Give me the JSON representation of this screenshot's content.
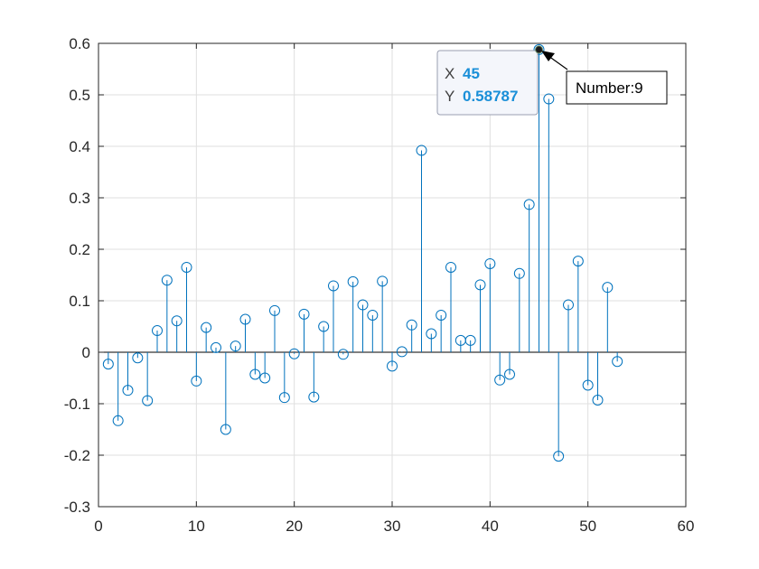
{
  "chart_data": {
    "type": "stem",
    "title": "",
    "xlabel": "",
    "ylabel": "",
    "xlim": [
      0,
      60
    ],
    "ylim": [
      -0.3,
      0.6
    ],
    "xticks": [
      0,
      10,
      20,
      30,
      40,
      50,
      60
    ],
    "yticks": [
      -0.3,
      -0.2,
      -0.1,
      0,
      0.1,
      0.2,
      0.3,
      0.4,
      0.5,
      0.6
    ],
    "xtick_labels": [
      "0",
      "10",
      "20",
      "30",
      "40",
      "50",
      "60"
    ],
    "ytick_labels": [
      "-0.3",
      "-0.2",
      "-0.1",
      "0",
      "0.1",
      "0.2",
      "0.3",
      "0.4",
      "0.5",
      "0.6"
    ],
    "grid": true,
    "baseline": 0,
    "series": [
      {
        "color": "#0072bd",
        "x": [
          1,
          2,
          3,
          4,
          5,
          6,
          7,
          8,
          9,
          10,
          11,
          12,
          13,
          14,
          15,
          16,
          17,
          18,
          19,
          20,
          21,
          22,
          23,
          24,
          25,
          26,
          27,
          28,
          29,
          30,
          31,
          32,
          33,
          34,
          35,
          36,
          37,
          38,
          39,
          40,
          41,
          42,
          43,
          44,
          45,
          46,
          47,
          48,
          49,
          50,
          51,
          52,
          53
        ],
        "y": [
          -0.023,
          -0.133,
          -0.074,
          -0.011,
          -0.094,
          0.042,
          0.14,
          0.061,
          0.165,
          -0.056,
          0.048,
          0.009,
          -0.15,
          0.012,
          0.064,
          -0.043,
          -0.05,
          0.081,
          -0.088,
          -0.003,
          0.074,
          -0.087,
          0.05,
          0.129,
          -0.004,
          0.137,
          0.092,
          0.072,
          0.138,
          -0.027,
          0.001,
          0.053,
          0.392,
          0.036,
          0.072,
          0.165,
          0.023,
          0.023,
          0.131,
          0.172,
          -0.054,
          -0.043,
          0.153,
          0.287,
          0.58787,
          0.492,
          -0.202,
          0.092,
          0.177,
          -0.064,
          -0.093,
          0.126,
          -0.018
        ]
      }
    ],
    "datatip": {
      "x_key": "X",
      "x_value": "45",
      "y_key": "Y",
      "y_value": "0.58787",
      "point_x": 45,
      "point_y": 0.58787
    },
    "annotation": {
      "text": "Number:9"
    }
  }
}
